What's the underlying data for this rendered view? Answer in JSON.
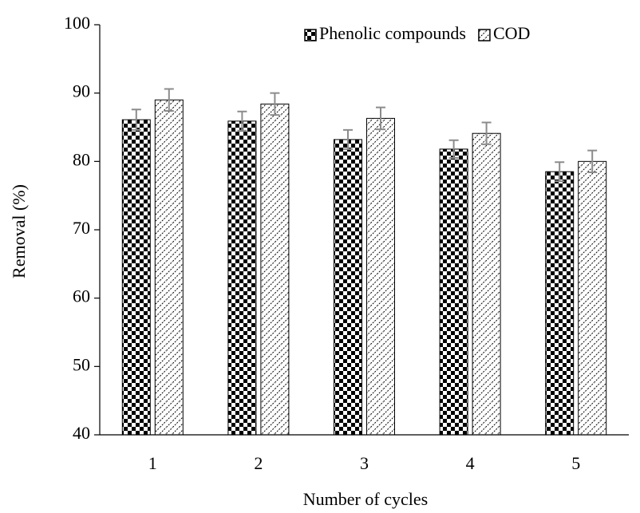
{
  "chart_data": {
    "type": "bar",
    "xlabel": "Number of cycles",
    "ylabel": "Removal (%)",
    "categories": [
      "1",
      "2",
      "3",
      "4",
      "5"
    ],
    "series": [
      {
        "name": "Phenolic compounds",
        "color": "#000000",
        "values": [
          86.1,
          85.9,
          83.2,
          81.8,
          78.5
        ],
        "errors": [
          1.5,
          1.4,
          1.4,
          1.3,
          1.4
        ]
      },
      {
        "name": "COD",
        "color": "#000000",
        "values": [
          89.0,
          88.4,
          86.3,
          84.1,
          80.0
        ],
        "errors": [
          1.6,
          1.6,
          1.6,
          1.6,
          1.6
        ]
      }
    ],
    "ylim": [
      40,
      100
    ],
    "yticks": [
      40,
      50,
      60,
      70,
      80,
      90,
      100
    ],
    "legend": "upper right",
    "grid": false
  }
}
